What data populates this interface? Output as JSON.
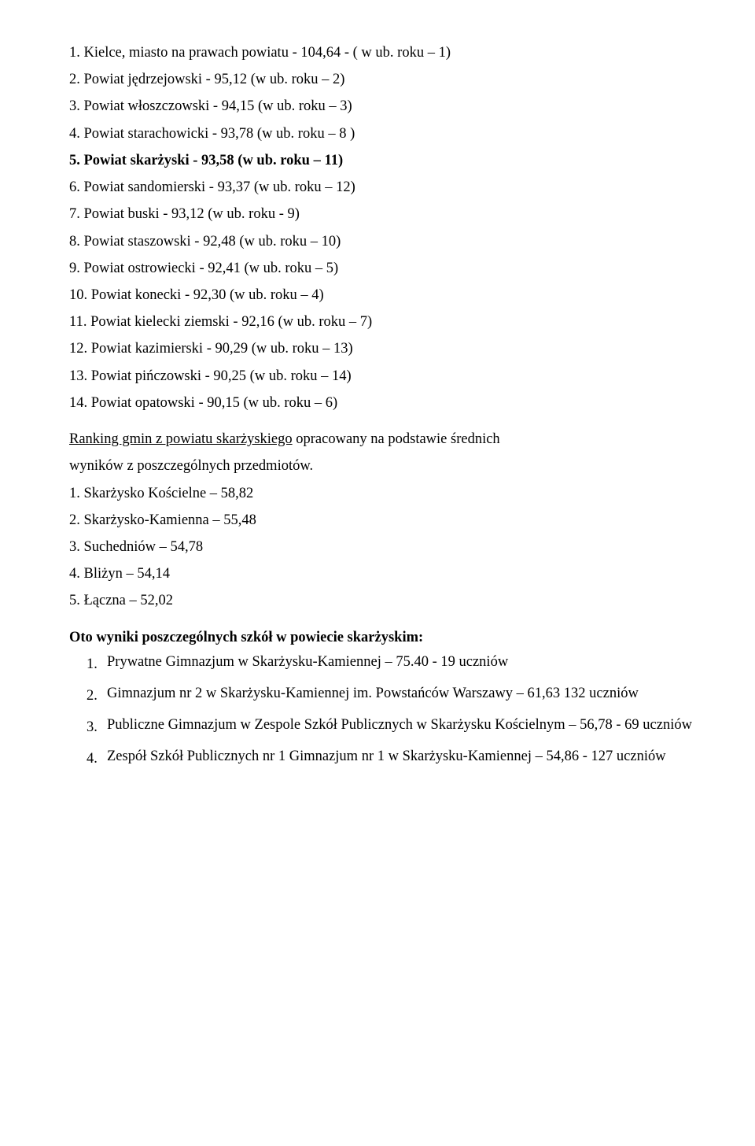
{
  "powiat_list": [
    "1. Kielce, miasto na prawach powiatu - 104,64  - ( w ub. roku – 1)",
    "2. Powiat jędrzejowski - 95,12 (w ub. roku – 2)",
    "3. Powiat włoszczowski - 94,15 (w ub. roku – 3)",
    "4. Powiat starachowicki - 93,78 (w ub. roku – 8 )",
    "6. Powiat sandomierski - 93,37 (w ub. roku – 12)",
    "7. Powiat buski - 93,12 (w ub. roku  - 9)",
    "8. Powiat staszowski - 92,48 (w ub. roku – 10)",
    "9. Powiat ostrowiecki - 92,41 (w ub. roku – 5)",
    "10. Powiat konecki - 92,30 (w ub. roku – 4)",
    "11. Powiat kielecki ziemski - 92,16 (w ub. roku – 7)",
    "12. Powiat kazimierski - 90,29 (w ub. roku – 13)",
    "13. Powiat pińczowski - 90,25 (w ub. roku – 14)",
    "14. Powiat opatowski - 90,15 (w ub. roku – 6)"
  ],
  "powiat_bold": "5. Powiat skarżyski - 93,58 (w ub. roku – 11)",
  "ranking_title_u": "Ranking gmin z powiatu skarżyskiego",
  "ranking_title_rest": " opracowany na podstawie średnich",
  "ranking_title_line2": "wyników z poszczególnych przedmiotów.",
  "gmin_list": [
    "1. Skarżysko Kościelne – 58,82",
    "2. Skarżysko-Kamienna – 55,48",
    "3. Suchedniów – 54,78",
    "4. Bliżyn – 54,14",
    "5. Łączna – 52,02"
  ],
  "schools_heading": "Oto wyniki poszczególnych szkół w powiecie skarżyskim:",
  "schools": [
    {
      "num": "1.",
      "text": "Prywatne Gimnazjum w Skarżysku-Kamiennej – 75.40 - 19 uczniów"
    },
    {
      "num": "2.",
      "text": "Gimnazjum nr 2 w Skarżysku-Kamiennej im. Powstańców Warszawy – 61,63 132 uczniów"
    },
    {
      "num": "3.",
      "text": " Publiczne Gimnazjum w Zespole Szkół Publicznych w Skarżysku Kościelnym – 56,78  - 69 uczniów"
    },
    {
      "num": "4.",
      "text": " Zespół Szkół Publicznych nr 1 Gimnazjum nr 1 w Skarżysku-Kamiennej – 54,86 - 127 uczniów"
    }
  ]
}
